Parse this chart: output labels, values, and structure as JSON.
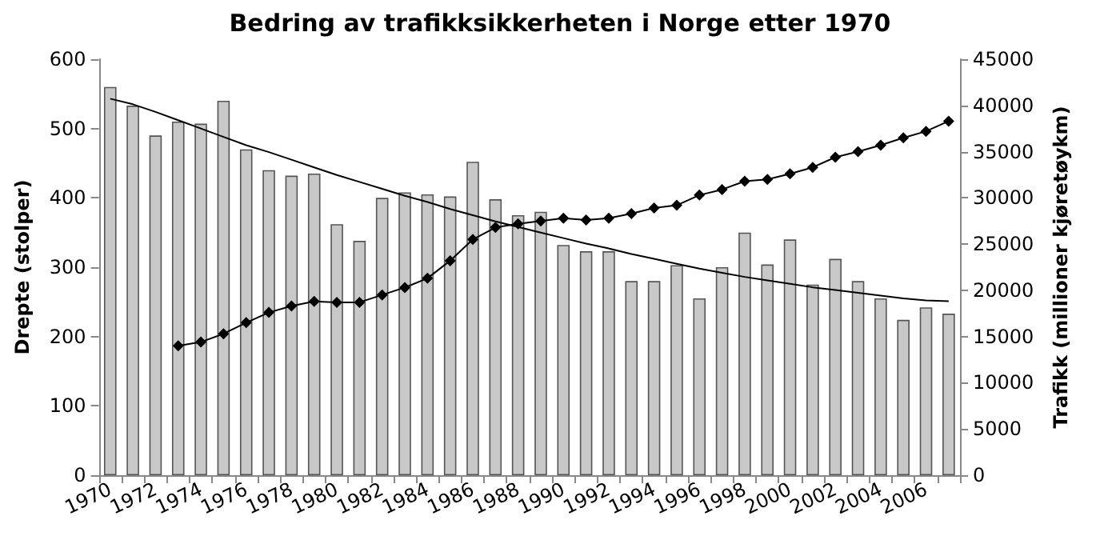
{
  "chart_data": {
    "type": "bar",
    "title": "Bedring av trafikksikkerheten i Norge etter 1970",
    "ylabel": "Drepte (stolper)",
    "y2label": "Trafikk (millioner kjøretøykm)",
    "categories": [
      "1970",
      null,
      "1972",
      null,
      "1974",
      null,
      "1976",
      null,
      "1978",
      null,
      "1980",
      null,
      "1982",
      null,
      "1984",
      null,
      "1986",
      null,
      "1988",
      null,
      "1990",
      null,
      "1992",
      null,
      "1994",
      null,
      "1996",
      null,
      "1998",
      null,
      "2000",
      null,
      "2002",
      null,
      "2004",
      null,
      "2006",
      null
    ],
    "series": [
      {
        "color": "#c8c8c8",
        "values": [
          560,
          533,
          490,
          510,
          507,
          540,
          470,
          440,
          432,
          435,
          362,
          338,
          400,
          408,
          405,
          402,
          452,
          398,
          375,
          380,
          332,
          323,
          323,
          280,
          280,
          303,
          255,
          300,
          350,
          304,
          340,
          275,
          312,
          280,
          255,
          224,
          242,
          233
        ]
      },
      {
        "type": "line",
        "color": "#000000",
        "marker": "none",
        "values": [
          543,
          535,
          524,
          512,
          500,
          488,
          476,
          466,
          455,
          444,
          433,
          423,
          413,
          403,
          394,
          384,
          375,
          366,
          358,
          350,
          342,
          334,
          327,
          319,
          312,
          305,
          298,
          292,
          286,
          281,
          276,
          271,
          267,
          263,
          259,
          255,
          252,
          251
        ]
      },
      {
        "type": "line",
        "color": "#000000",
        "marker": "diamond",
        "axis": "y2",
        "values": [
          null,
          null,
          null,
          14000,
          14400,
          15300,
          16500,
          17600,
          18300,
          18800,
          18700,
          18700,
          19500,
          20300,
          21300,
          23200,
          25500,
          26800,
          27200,
          27500,
          27800,
          27600,
          27800,
          28300,
          28900,
          29200,
          30300,
          30900,
          31800,
          32000,
          32600,
          33300,
          34400,
          35000,
          35700,
          36500,
          37200,
          38300
        ]
      }
    ],
    "ylim": [
      0,
      600
    ],
    "yticks": [
      0,
      100,
      200,
      300,
      400,
      500,
      600
    ],
    "y2lim": [
      0,
      45000
    ],
    "y2ticks": [
      0,
      5000,
      10000,
      15000,
      20000,
      25000,
      30000,
      35000,
      40000,
      45000
    ],
    "grid": false
  }
}
